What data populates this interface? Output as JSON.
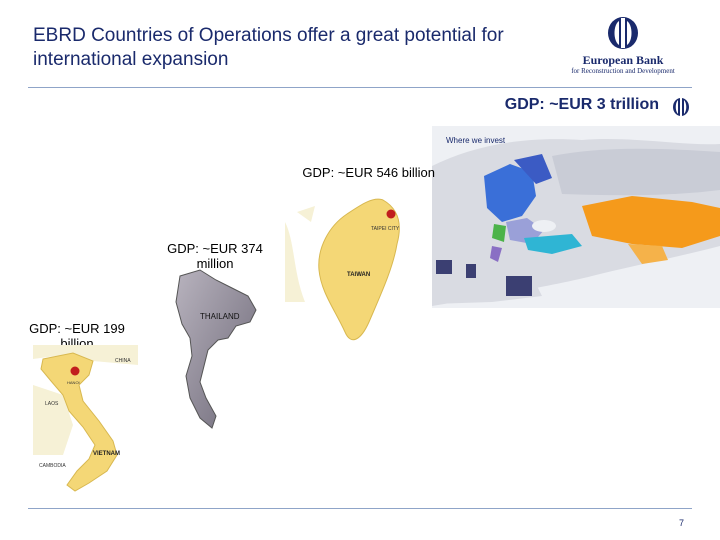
{
  "slide": {
    "title_line1": "EBRD Countries of Operations offer a great potential for",
    "title_line2": "international expansion",
    "page_number": "7"
  },
  "logo": {
    "line1": "European Bank",
    "line2": "for Reconstruction and Development",
    "icon": "ebrd-logo-icon"
  },
  "regions": {
    "ebrd": {
      "gdp_label": "GDP: ~EUR 3 trillion",
      "map_heading": "Where we invest",
      "color": "#1a2a6c"
    },
    "taiwan": {
      "gdp_label": "GDP: ~EUR 546 billion",
      "country_label": "TAIWAN",
      "capital_label": "TAIPEI CITY"
    },
    "thailand": {
      "gdp_label_line1": "GDP: ~EUR 374",
      "gdp_label_line2": "million",
      "country_label": "THAILAND"
    },
    "vietnam": {
      "gdp_label_line1": "GDP: ~EUR 199",
      "gdp_label_line2": "billion",
      "country_label": "VIETNAM",
      "capital_label": "HANOI",
      "neighbor_labels": [
        "CHINA",
        "LAOS",
        "CAMBODIA"
      ]
    }
  },
  "colors": {
    "title": "#1a2a6c",
    "taiwan_fill": "#f4d776",
    "thailand_fill": "#8f8a96",
    "vietnam_fill": "#f4d776",
    "ebrd_orange": "#f59a1b",
    "ebrd_blue": "#3a6fd8",
    "ebrd_lavender": "#9aa0d8"
  }
}
